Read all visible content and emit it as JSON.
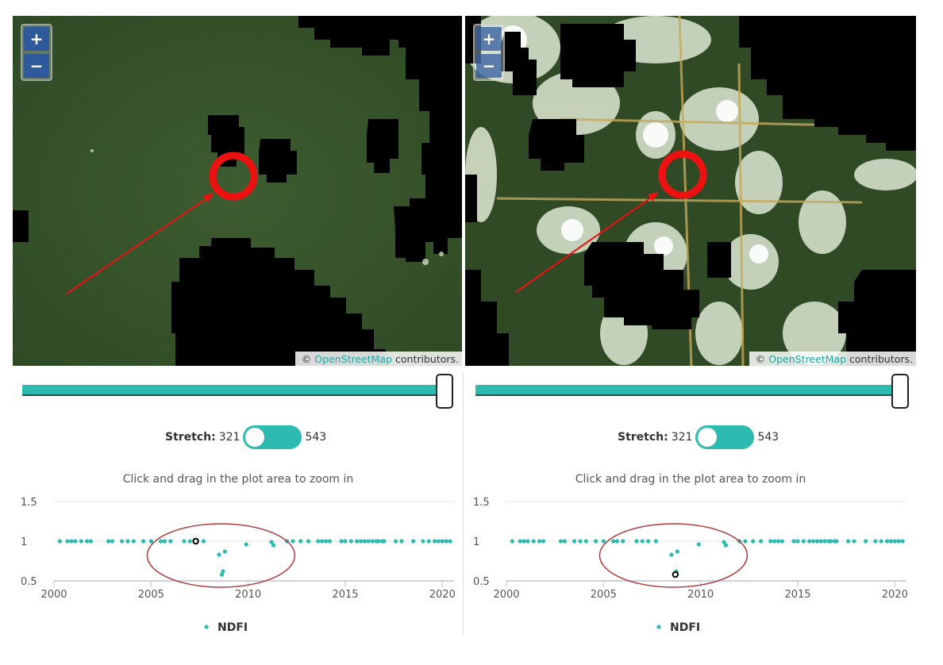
{
  "zoom": {
    "in_label": "+",
    "out_label": "−"
  },
  "attribution": {
    "prefix": "©",
    "link": "OpenStreetMap",
    "suffix": "contributors."
  },
  "stretch": {
    "label": "Stretch:",
    "min": "321",
    "max": "543"
  },
  "plot": {
    "hint": "Click and drag in the plot area to zoom in",
    "legend": "NDFI"
  },
  "colors": {
    "accent": "#2dbab0",
    "annotation_red": "#ee1111",
    "ellipse": "#b03a3a"
  },
  "chart_data": [
    {
      "type": "scatter",
      "title": "",
      "xlabel": "",
      "ylabel": "",
      "xlim": [
        2000,
        2020.6
      ],
      "ylim": [
        0.5,
        1.5
      ],
      "x_ticks": [
        "2000",
        "2005",
        "2010",
        "2015",
        "2020"
      ],
      "y_ticks": [
        "0.5",
        "1",
        "1.5"
      ],
      "legend": "bottom-center",
      "series": [
        {
          "name": "NDFI",
          "color": "#2dbab0",
          "points": [
            [
              2000.3,
              1
            ],
            [
              2000.7,
              1
            ],
            [
              2000.9,
              1
            ],
            [
              2001.1,
              1
            ],
            [
              2001.4,
              1
            ],
            [
              2001.7,
              1
            ],
            [
              2001.9,
              1
            ],
            [
              2002.8,
              1
            ],
            [
              2003.0,
              1
            ],
            [
              2003.5,
              1
            ],
            [
              2003.8,
              1
            ],
            [
              2004.1,
              1
            ],
            [
              2004.6,
              1
            ],
            [
              2005.0,
              1
            ],
            [
              2005.5,
              1
            ],
            [
              2005.7,
              1
            ],
            [
              2006.0,
              1
            ],
            [
              2006.7,
              1
            ],
            [
              2007.0,
              1
            ],
            [
              2007.3,
              1
            ],
            [
              2007.7,
              1
            ],
            [
              2008.5,
              0.83
            ],
            [
              2008.8,
              0.87
            ],
            [
              2008.7,
              0.62
            ],
            [
              2008.65,
              0.58
            ],
            [
              2009.9,
              0.96
            ],
            [
              2011.2,
              0.99
            ],
            [
              2011.3,
              0.95
            ],
            [
              2012.0,
              1
            ],
            [
              2012.3,
              1
            ],
            [
              2012.7,
              1
            ],
            [
              2013.1,
              1
            ],
            [
              2013.6,
              1
            ],
            [
              2013.8,
              1
            ],
            [
              2014.0,
              1
            ],
            [
              2014.2,
              1
            ],
            [
              2014.8,
              1
            ],
            [
              2015.0,
              1
            ],
            [
              2015.3,
              1
            ],
            [
              2015.6,
              1
            ],
            [
              2015.8,
              1
            ],
            [
              2016.0,
              1
            ],
            [
              2016.2,
              1
            ],
            [
              2016.4,
              1
            ],
            [
              2016.6,
              1
            ],
            [
              2016.7,
              1
            ],
            [
              2016.9,
              1
            ],
            [
              2017.0,
              1
            ],
            [
              2017.6,
              1
            ],
            [
              2017.9,
              1
            ],
            [
              2018.5,
              1
            ],
            [
              2019.0,
              1
            ],
            [
              2019.3,
              1
            ],
            [
              2019.6,
              1
            ],
            [
              2019.8,
              1
            ],
            [
              2020.0,
              1
            ],
            [
              2020.2,
              1
            ],
            [
              2020.4,
              1
            ]
          ],
          "highlighted": [
            2007.3,
            1
          ]
        }
      ]
    },
    {
      "type": "scatter",
      "title": "",
      "xlabel": "",
      "ylabel": "",
      "xlim": [
        2000,
        2020.6
      ],
      "ylim": [
        0.5,
        1.5
      ],
      "x_ticks": [
        "2000",
        "2005",
        "2010",
        "2015",
        "2020"
      ],
      "y_ticks": [
        "0.5",
        "1",
        "1.5"
      ],
      "legend": "bottom-center",
      "series": [
        {
          "name": "NDFI",
          "color": "#2dbab0",
          "points": [
            [
              2000.3,
              1
            ],
            [
              2000.7,
              1
            ],
            [
              2000.9,
              1
            ],
            [
              2001.1,
              1
            ],
            [
              2001.4,
              1
            ],
            [
              2001.7,
              1
            ],
            [
              2001.9,
              1
            ],
            [
              2002.8,
              1
            ],
            [
              2003.0,
              1
            ],
            [
              2003.5,
              1
            ],
            [
              2003.8,
              1
            ],
            [
              2004.1,
              1
            ],
            [
              2004.6,
              1
            ],
            [
              2005.0,
              1
            ],
            [
              2005.5,
              1
            ],
            [
              2005.7,
              1
            ],
            [
              2006.0,
              1
            ],
            [
              2006.7,
              1
            ],
            [
              2007.0,
              1
            ],
            [
              2007.3,
              1
            ],
            [
              2007.7,
              1
            ],
            [
              2008.5,
              0.83
            ],
            [
              2008.8,
              0.87
            ],
            [
              2008.75,
              0.62
            ],
            [
              2008.7,
              0.58
            ],
            [
              2009.9,
              0.96
            ],
            [
              2011.2,
              0.99
            ],
            [
              2011.3,
              0.95
            ],
            [
              2012.0,
              1
            ],
            [
              2012.3,
              1
            ],
            [
              2012.7,
              1
            ],
            [
              2013.1,
              1
            ],
            [
              2013.6,
              1
            ],
            [
              2013.8,
              1
            ],
            [
              2014.0,
              1
            ],
            [
              2014.2,
              1
            ],
            [
              2014.8,
              1
            ],
            [
              2015.0,
              1
            ],
            [
              2015.3,
              1
            ],
            [
              2015.6,
              1
            ],
            [
              2015.8,
              1
            ],
            [
              2016.0,
              1
            ],
            [
              2016.2,
              1
            ],
            [
              2016.4,
              1
            ],
            [
              2016.6,
              1
            ],
            [
              2016.7,
              1
            ],
            [
              2016.9,
              1
            ],
            [
              2017.0,
              1
            ],
            [
              2017.6,
              1
            ],
            [
              2017.9,
              1
            ],
            [
              2018.5,
              1
            ],
            [
              2019.0,
              1
            ],
            [
              2019.3,
              1
            ],
            [
              2019.6,
              1
            ],
            [
              2019.8,
              1
            ],
            [
              2020.0,
              1
            ],
            [
              2020.2,
              1
            ],
            [
              2020.4,
              1
            ]
          ],
          "highlighted": [
            2008.7,
            0.58
          ]
        }
      ]
    }
  ]
}
